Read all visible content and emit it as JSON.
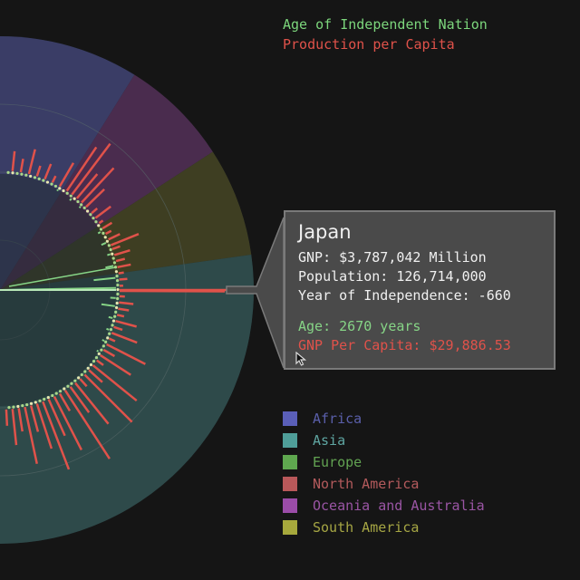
{
  "legend": {
    "age_label": "Age of Independent Nation",
    "gnp_label": "Production per Capita",
    "age_color": "#7cd67c",
    "gnp_color": "#e0524a"
  },
  "tooltip": {
    "country": "Japan",
    "gnp": "GNP: $3,787,042 Million",
    "population": "Population: 126,714,000",
    "independence": "Year of Independence: -660",
    "age": "Age: 2670 years",
    "gnp_per_capita": "GNP Per Capita: $29,886.53",
    "cursor_icon": "mouse-pointer-icon"
  },
  "continents": [
    {
      "name": "Africa",
      "color": "#5a5fb8",
      "text_color": "#5a5faa"
    },
    {
      "name": "Asia",
      "color": "#4f9e99",
      "text_color": "#5fa6a2"
    },
    {
      "name": "Europe",
      "color": "#5fa84f",
      "text_color": "#62a352"
    },
    {
      "name": "North America",
      "color": "#b8585a",
      "text_color": "#b35a5c"
    },
    {
      "name": "Oceania and Australia",
      "color": "#9b4ca8",
      "text_color": "#9a55a4"
    },
    {
      "name": "South America",
      "color": "#a6a83c",
      "text_color": "#a6a644"
    }
  ],
  "chart_data": {
    "type": "radial-bar",
    "highlighted": {
      "country": "Japan",
      "age_years": 2670,
      "gnp_per_capita": 29886.53
    },
    "sectors": [
      {
        "continent": "Africa",
        "color": "#3a3d66",
        "start_deg": -90,
        "end_deg": -58
      },
      {
        "continent": "Oceania and Australia",
        "color": "#4a2c4e",
        "start_deg": -58,
        "end_deg": -33
      },
      {
        "continent": "South America",
        "color": "#3e3e22",
        "start_deg": -33,
        "end_deg": -8
      },
      {
        "continent": "Asia",
        "color": "#2e4a4a",
        "start_deg": -8,
        "end_deg": 90
      }
    ],
    "gnp_per_capita_series": [
      {
        "angle_deg": -40,
        "value": 8
      },
      {
        "angle_deg": -37,
        "value": 21
      },
      {
        "angle_deg": -34,
        "value": 5
      },
      {
        "angle_deg": -31,
        "value": 12
      },
      {
        "angle_deg": -28,
        "value": 7
      },
      {
        "angle_deg": -25,
        "value": 14
      },
      {
        "angle_deg": -22,
        "value": 33
      },
      {
        "angle_deg": -20,
        "value": 9
      },
      {
        "angle_deg": -17,
        "value": 18
      },
      {
        "angle_deg": -14,
        "value": 10
      },
      {
        "angle_deg": -11,
        "value": 15
      },
      {
        "angle_deg": -8,
        "value": 6
      },
      {
        "angle_deg": -5,
        "value": 9
      },
      {
        "angle_deg": -2,
        "value": 4
      },
      {
        "angle_deg": 0,
        "value": 120
      },
      {
        "angle_deg": 3,
        "value": 6
      },
      {
        "angle_deg": 6,
        "value": 16
      },
      {
        "angle_deg": 9,
        "value": 12
      },
      {
        "angle_deg": 12,
        "value": 8
      },
      {
        "angle_deg": 15,
        "value": 24
      },
      {
        "angle_deg": 18,
        "value": 10
      },
      {
        "angle_deg": 21,
        "value": 30
      },
      {
        "angle_deg": 24,
        "value": 7
      },
      {
        "angle_deg": 27,
        "value": 48
      },
      {
        "angle_deg": 30,
        "value": 14
      },
      {
        "angle_deg": 33,
        "value": 40
      },
      {
        "angle_deg": 36,
        "value": 9
      },
      {
        "angle_deg": 39,
        "value": 62
      },
      {
        "angle_deg": 42,
        "value": 20
      },
      {
        "angle_deg": 45,
        "value": 74
      },
      {
        "angle_deg": 48,
        "value": 11
      },
      {
        "angle_deg": 51,
        "value": 58
      },
      {
        "angle_deg": 54,
        "value": 35
      },
      {
        "angle_deg": 57,
        "value": 90
      },
      {
        "angle_deg": 60,
        "value": 22
      },
      {
        "angle_deg": 63,
        "value": 66
      },
      {
        "angle_deg": 66,
        "value": 44
      },
      {
        "angle_deg": 69,
        "value": 80
      },
      {
        "angle_deg": 72,
        "value": 52
      },
      {
        "angle_deg": 75,
        "value": 30
      },
      {
        "angle_deg": 78,
        "value": 64
      },
      {
        "angle_deg": 81,
        "value": 26
      },
      {
        "angle_deg": 84,
        "value": 40
      },
      {
        "angle_deg": 87,
        "value": 18
      },
      {
        "angle_deg": -84,
        "value": 22
      },
      {
        "angle_deg": -80,
        "value": 15
      },
      {
        "angle_deg": -76,
        "value": 28
      },
      {
        "angle_deg": -72,
        "value": 12
      },
      {
        "angle_deg": -68,
        "value": 18
      },
      {
        "angle_deg": -64,
        "value": 8
      },
      {
        "angle_deg": -60,
        "value": 30
      },
      {
        "angle_deg": -56,
        "value": 58
      },
      {
        "angle_deg": -53,
        "value": 70
      },
      {
        "angle_deg": -50,
        "value": 35
      },
      {
        "angle_deg": -47,
        "value": 52
      },
      {
        "angle_deg": -44,
        "value": 28
      }
    ],
    "age_series": [
      {
        "angle_deg": -6,
        "value": 480
      },
      {
        "angle_deg": -1,
        "value": 2670
      },
      {
        "angle_deg": 4,
        "value": 120
      },
      {
        "angle_deg": 8,
        "value": 300
      },
      {
        "angle_deg": 14,
        "value": 90
      },
      {
        "angle_deg": 20,
        "value": 60
      },
      {
        "angle_deg": 26,
        "value": 50
      },
      {
        "angle_deg": 32,
        "value": 40
      },
      {
        "angle_deg": -12,
        "value": 180
      },
      {
        "angle_deg": -18,
        "value": 70
      },
      {
        "angle_deg": -24,
        "value": 110
      },
      {
        "angle_deg": -30,
        "value": 60
      },
      {
        "angle_deg": -46,
        "value": 40
      },
      {
        "angle_deg": -52,
        "value": 55
      },
      {
        "angle_deg": -60,
        "value": 35
      }
    ]
  }
}
